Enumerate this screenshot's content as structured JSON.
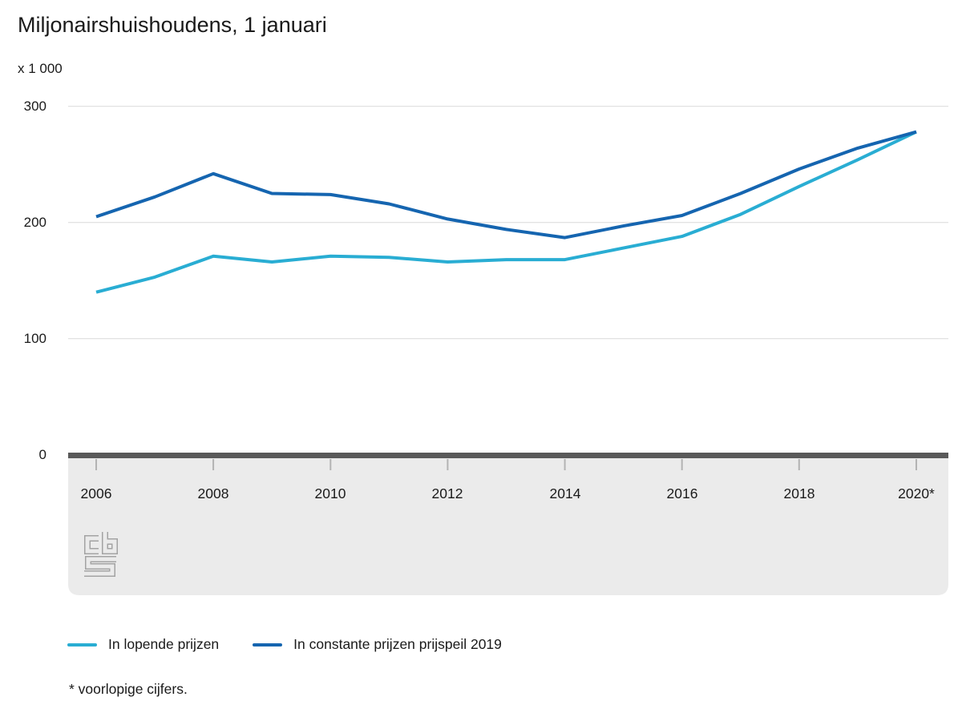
{
  "title": "Miljonairshuishoudens, 1 januari",
  "unit_label": "x 1 000",
  "footnote": "* voorlopige cijfers.",
  "icons": {
    "logo": "cbs-logo"
  },
  "colors": {
    "series_current_prices": "#29ADD3",
    "series_constant_prices": "#1565B0",
    "gridline": "#d9d9d9",
    "axis_bar": "#595959",
    "band": "#ebebeb",
    "tick": "#b3b3b3",
    "text": "#1a1a1a",
    "logo_outline": "#a3a3a3"
  },
  "chart_data": {
    "type": "line",
    "title": "Miljonairshuishoudens, 1 januari",
    "unit": "x 1 000",
    "x": [
      2006,
      2007,
      2008,
      2009,
      2010,
      2011,
      2012,
      2013,
      2014,
      2015,
      2016,
      2017,
      2018,
      2019,
      2020
    ],
    "x_tick_labels": [
      "2006",
      "2008",
      "2010",
      "2012",
      "2014",
      "2016",
      "2018",
      "2020*"
    ],
    "yticks": [
      0,
      100,
      200,
      300
    ],
    "ylim": [
      0,
      300
    ],
    "grid": true,
    "legend_position": "bottom",
    "series": [
      {
        "name": "In lopende prijzen",
        "color": "#29ADD3",
        "values": [
          140,
          153,
          171,
          166,
          171,
          170,
          166,
          168,
          168,
          178,
          188,
          207,
          231,
          254,
          278
        ]
      },
      {
        "name": "In constante prijzen prijspeil 2019",
        "color": "#1565B0",
        "values": [
          205,
          222,
          242,
          225,
          224,
          216,
          203,
          194,
          187,
          197,
          206,
          225,
          246,
          264,
          278
        ]
      }
    ]
  }
}
